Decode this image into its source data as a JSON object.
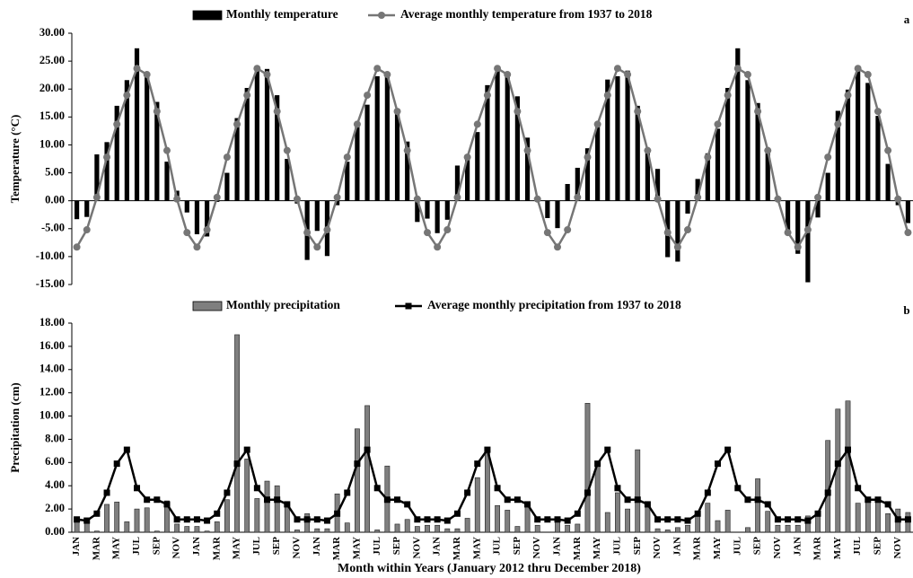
{
  "chart_data": [
    {
      "type": "combo",
      "y_label": "Temperature (°C)",
      "annotation": "a",
      "ylim": [
        -15,
        30
      ],
      "yticks": [
        {
          "value": -15,
          "label": "-15.00"
        },
        {
          "value": -10,
          "label": "-10.00"
        },
        {
          "value": -5,
          "label": "-5.00"
        },
        {
          "value": 0,
          "label": "0.00"
        },
        {
          "value": 5,
          "label": "5.00"
        },
        {
          "value": 10,
          "label": "10.00"
        },
        {
          "value": 15,
          "label": "15.00"
        },
        {
          "value": 20,
          "label": "20.00"
        },
        {
          "value": 25,
          "label": "25.00"
        },
        {
          "value": 30,
          "label": "30.00"
        }
      ],
      "series": [
        {
          "name": "Monthly temperature",
          "kind": "bar",
          "color": "#000000",
          "values": [
            -3.3,
            -2.9,
            8.3,
            10.5,
            17.0,
            21.6,
            27.3,
            23.0,
            17.7,
            7.0,
            1.8,
            -2.1,
            -6.0,
            -6.4,
            -0.2,
            5.0,
            14.8,
            20.2,
            23.4,
            23.6,
            18.9,
            7.5,
            -0.5,
            -10.6,
            -5.4,
            -9.9,
            -0.8,
            7.0,
            13.5,
            17.2,
            22.3,
            22.5,
            15.5,
            10.6,
            -3.8,
            -3.2,
            -5.8,
            -3.4,
            6.3,
            8.0,
            12.3,
            20.7,
            23.5,
            22.5,
            18.7,
            11.3,
            0.5,
            -3.1,
            -4.9,
            3.0,
            5.9,
            9.4,
            13.9,
            21.7,
            22.3,
            23.3,
            17.0,
            9.1,
            5.7,
            -10.1,
            -10.9,
            -2.3,
            3.9,
            8.5,
            12.9,
            20.2,
            27.3,
            21.6,
            17.5,
            9.1,
            0.3,
            -5.5,
            -9.5,
            -14.6,
            -3.0,
            5.0,
            16.1,
            19.9,
            23.5,
            21.1,
            15.2,
            6.6,
            -0.8,
            -4.0
          ]
        },
        {
          "name": "Average monthly temperature from 1937 to 2018",
          "kind": "line",
          "marker": "circle",
          "color": "#767676",
          "values": [
            -8.3,
            -5.2,
            0.6,
            7.8,
            13.7,
            18.9,
            23.7,
            22.6,
            16.0,
            9.0,
            0.3,
            -5.7,
            -8.3,
            -5.2,
            0.6,
            7.8,
            13.7,
            18.9,
            23.7,
            22.6,
            16.0,
            9.0,
            0.3,
            -5.7,
            -8.3,
            -5.2,
            0.6,
            7.8,
            13.7,
            18.9,
            23.7,
            22.6,
            16.0,
            9.0,
            0.3,
            -5.7,
            -8.3,
            -5.2,
            0.6,
            7.8,
            13.7,
            18.9,
            23.7,
            22.6,
            16.0,
            9.0,
            0.3,
            -5.7,
            -8.3,
            -5.2,
            0.6,
            7.8,
            13.7,
            18.9,
            23.7,
            22.6,
            16.0,
            9.0,
            0.3,
            -5.7,
            -8.3,
            -5.2,
            0.6,
            7.8,
            13.7,
            18.9,
            23.7,
            22.6,
            16.0,
            9.0,
            0.3,
            -5.7,
            -8.3,
            -5.2,
            0.6,
            7.8,
            13.7,
            18.9,
            23.7,
            22.6,
            16.0,
            9.0,
            0.3,
            -5.7
          ]
        }
      ]
    },
    {
      "type": "combo",
      "y_label": "Precipitation (cm)",
      "x_label": "Month within Years (January 2012 thru December 2018)",
      "annotation": "b",
      "ylim": [
        0,
        18
      ],
      "yticks": [
        {
          "value": 0,
          "label": "0.00"
        },
        {
          "value": 2,
          "label": "2.00"
        },
        {
          "value": 4,
          "label": "4.00"
        },
        {
          "value": 6,
          "label": "6.00"
        },
        {
          "value": 8,
          "label": "8.00"
        },
        {
          "value": 10,
          "label": "10.00"
        },
        {
          "value": 12,
          "label": "12.00"
        },
        {
          "value": 14,
          "label": "14.00"
        },
        {
          "value": 16,
          "label": "16.00"
        },
        {
          "value": 18,
          "label": "18.00"
        }
      ],
      "categories": [
        "JAN",
        null,
        "MAR",
        null,
        "MAY",
        null,
        "JUL",
        null,
        "SEP",
        null,
        "NOV",
        null,
        "JAN",
        null,
        "MAR",
        null,
        "MAY",
        null,
        "JUL",
        null,
        "SEP",
        null,
        "NOV",
        null,
        "JAN",
        null,
        "MAR",
        null,
        "MAY",
        null,
        "JUL",
        null,
        "SEP",
        null,
        "NOV",
        null,
        "JAN",
        null,
        "MAR",
        null,
        "MAY",
        null,
        "JUL",
        null,
        "SEP",
        null,
        "NOV",
        null,
        "JAN",
        null,
        "MAR",
        null,
        "MAY",
        null,
        "JUL",
        null,
        "SEP",
        null,
        "NOV",
        null,
        "JAN",
        null,
        "MAR",
        null,
        "MAY",
        null,
        "JUL",
        null,
        "SEP",
        null,
        "NOV",
        null,
        "JAN",
        null,
        "MAR",
        null,
        "MAY",
        null,
        "JUL",
        null,
        "SEP",
        null,
        "NOV",
        null
      ],
      "series": [
        {
          "name": "Monthly precipitation",
          "kind": "bar",
          "color": "#7f7f7f",
          "values": [
            1.0,
            0.9,
            0.1,
            2.4,
            2.6,
            0.9,
            2.0,
            2.1,
            0.1,
            2.7,
            0.7,
            0.5,
            0.5,
            0.1,
            0.9,
            2.8,
            17.0,
            6.3,
            2.9,
            4.4,
            4.0,
            2.3,
            0.2,
            1.6,
            0.3,
            0.3,
            3.3,
            0.8,
            8.9,
            10.9,
            0.2,
            5.7,
            0.7,
            1.1,
            0.5,
            0.6,
            0.6,
            0.3,
            0.3,
            1.2,
            4.7,
            7.1,
            2.3,
            1.9,
            0.5,
            2.3,
            0.6,
            0.0,
            1.2,
            0.6,
            0.7,
            11.1,
            6.0,
            1.7,
            3.4,
            2.0,
            7.1,
            2.2,
            0.3,
            0.2,
            0.4,
            0.6,
            1.4,
            2.5,
            1.0,
            1.9,
            0.0,
            0.4,
            4.6,
            1.8,
            0.6,
            0.6,
            0.6,
            1.4,
            1.6,
            7.9,
            10.6,
            11.3,
            2.5,
            2.9,
            2.8,
            1.6,
            2.0,
            1.7
          ]
        },
        {
          "name": "Average monthly precipitation from 1937 to 2018",
          "kind": "line",
          "marker": "square",
          "color": "#000000",
          "values": [
            1.1,
            1.0,
            1.6,
            3.4,
            5.9,
            7.1,
            3.8,
            2.8,
            2.8,
            2.4,
            1.1,
            1.1,
            1.1,
            1.0,
            1.6,
            3.4,
            5.9,
            7.1,
            3.8,
            2.8,
            2.8,
            2.4,
            1.1,
            1.1,
            1.1,
            1.0,
            1.6,
            3.4,
            5.9,
            7.1,
            3.8,
            2.8,
            2.8,
            2.4,
            1.1,
            1.1,
            1.1,
            1.0,
            1.6,
            3.4,
            5.9,
            7.1,
            3.8,
            2.8,
            2.8,
            2.4,
            1.1,
            1.1,
            1.1,
            1.0,
            1.6,
            3.4,
            5.9,
            7.1,
            3.8,
            2.8,
            2.8,
            2.4,
            1.1,
            1.1,
            1.1,
            1.0,
            1.6,
            3.4,
            5.9,
            7.1,
            3.8,
            2.8,
            2.8,
            2.4,
            1.1,
            1.1,
            1.1,
            1.0,
            1.6,
            3.4,
            5.9,
            7.1,
            3.8,
            2.8,
            2.8,
            2.4,
            1.1,
            1.1
          ]
        }
      ]
    }
  ]
}
